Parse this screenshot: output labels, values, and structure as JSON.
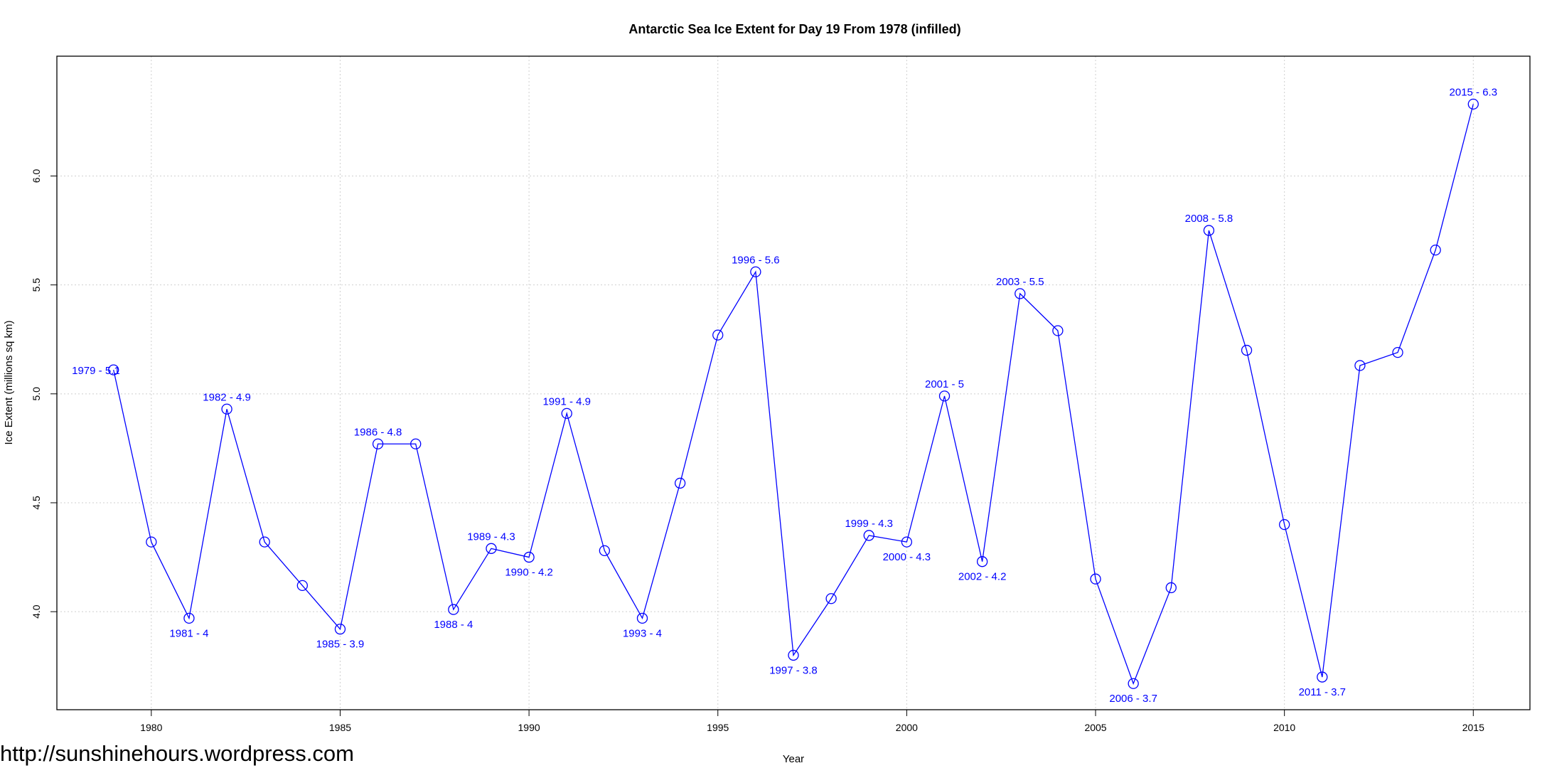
{
  "chart_data": {
    "type": "line",
    "title": "Antarctic Sea Ice Extent for Day 19 From 1978 (infilled)",
    "xlabel": "Year",
    "ylabel": "Ice Extent (millions sq km)",
    "xlim": [
      1977.5,
      2016.5
    ],
    "ylim": [
      3.55,
      6.55
    ],
    "x_ticks": [
      1980,
      1985,
      1990,
      1995,
      2000,
      2005,
      2010,
      2015
    ],
    "y_ticks": [
      4.0,
      4.5,
      5.0,
      5.5,
      6.0
    ],
    "y_tick_labels": [
      "4.0",
      "4.5",
      "5.0",
      "5.5",
      "6.0"
    ],
    "grid": true,
    "series_color": "#0000ff",
    "x": [
      1979,
      1980,
      1981,
      1982,
      1983,
      1984,
      1985,
      1986,
      1987,
      1988,
      1989,
      1990,
      1991,
      1992,
      1993,
      1994,
      1995,
      1996,
      1997,
      1998,
      1999,
      2000,
      2001,
      2002,
      2003,
      2004,
      2005,
      2006,
      2007,
      2008,
      2009,
      2010,
      2011,
      2012,
      2013,
      2014,
      2015
    ],
    "y": [
      5.11,
      4.32,
      3.97,
      4.93,
      4.32,
      4.12,
      3.92,
      4.77,
      4.77,
      4.01,
      4.29,
      4.25,
      4.91,
      4.28,
      3.97,
      4.59,
      5.27,
      5.56,
      3.8,
      4.06,
      4.35,
      4.32,
      4.99,
      4.23,
      5.46,
      5.29,
      4.15,
      3.67,
      4.11,
      5.75,
      5.2,
      4.4,
      3.7,
      5.13,
      5.19,
      5.66,
      6.33
    ],
    "annotations": [
      {
        "year": 1979,
        "text": "1979 - 5.1",
        "pos": "left"
      },
      {
        "year": 1981,
        "text": "1981 - 4",
        "pos": "below"
      },
      {
        "year": 1982,
        "text": "1982 - 4.9",
        "pos": "above"
      },
      {
        "year": 1985,
        "text": "1985 - 3.9",
        "pos": "below"
      },
      {
        "year": 1986,
        "text": "1986 - 4.8",
        "pos": "above"
      },
      {
        "year": 1988,
        "text": "1988 - 4",
        "pos": "below"
      },
      {
        "year": 1989,
        "text": "1989 - 4.3",
        "pos": "above"
      },
      {
        "year": 1990,
        "text": "1990 - 4.2",
        "pos": "below"
      },
      {
        "year": 1991,
        "text": "1991 - 4.9",
        "pos": "above"
      },
      {
        "year": 1993,
        "text": "1993 - 4",
        "pos": "below"
      },
      {
        "year": 1996,
        "text": "1996 - 5.6",
        "pos": "above"
      },
      {
        "year": 1997,
        "text": "1997 - 3.8",
        "pos": "below"
      },
      {
        "year": 1999,
        "text": "1999 - 4.3",
        "pos": "above"
      },
      {
        "year": 2000,
        "text": "2000 - 4.3",
        "pos": "below"
      },
      {
        "year": 2001,
        "text": "2001 - 5",
        "pos": "above"
      },
      {
        "year": 2002,
        "text": "2002 - 4.2",
        "pos": "below"
      },
      {
        "year": 2003,
        "text": "2003 - 5.5",
        "pos": "above"
      },
      {
        "year": 2006,
        "text": "2006 - 3.7",
        "pos": "below"
      },
      {
        "year": 2008,
        "text": "2008 - 5.8",
        "pos": "above"
      },
      {
        "year": 2011,
        "text": "2011 - 3.7",
        "pos": "below"
      },
      {
        "year": 2015,
        "text": "2015 - 6.3",
        "pos": "above"
      }
    ]
  },
  "watermark": "http://sunshinehours.wordpress.com"
}
